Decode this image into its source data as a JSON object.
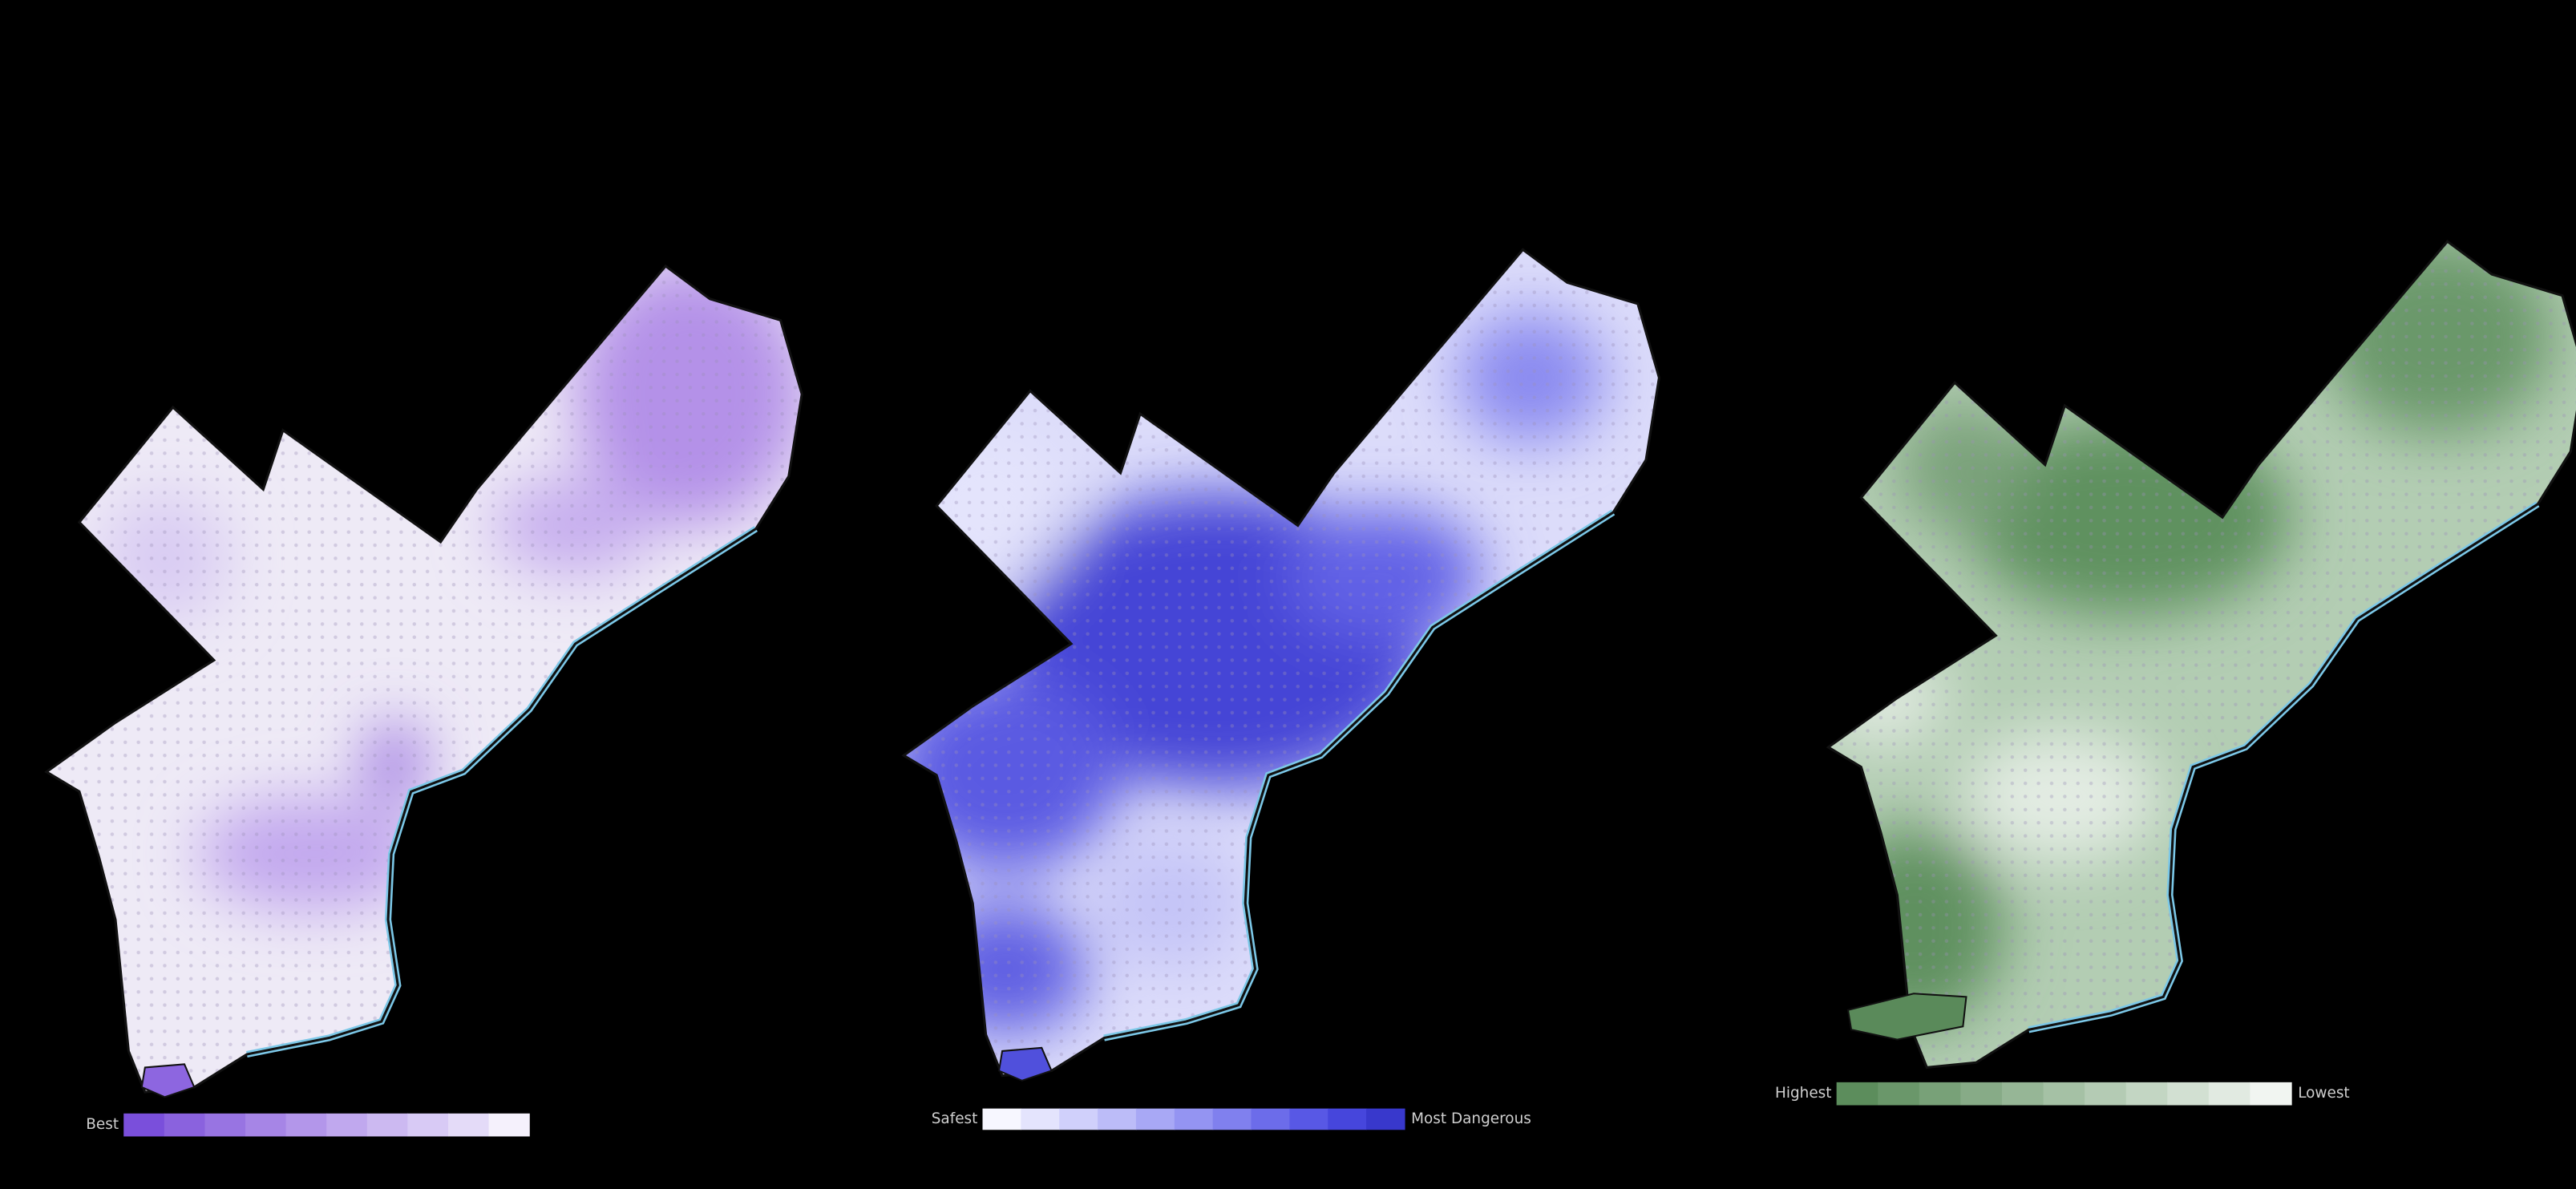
{
  "maps": [
    {
      "legend": {
        "left_label": "Best",
        "colors": [
          "#7a4fdb",
          "#8a62de",
          "#9874e2",
          "#a685e6",
          "#b396ea",
          "#c0a8ee",
          "#ccb9f1",
          "#d8caf5",
          "#e4dbf8",
          "#f5f1fc"
        ]
      }
    },
    {
      "legend": {
        "left_label": "Safest",
        "right_label": "Most Dangerous",
        "colors": [
          "#f7f7ff",
          "#e4e4fd",
          "#d0d0fb",
          "#bcbcf8",
          "#a8a8f5",
          "#9494f2",
          "#8080ee",
          "#6c6cea",
          "#5858e5",
          "#4646dc",
          "#3838cc"
        ]
      }
    },
    {
      "legend": {
        "left_label": "Highest",
        "right_label": "Lowest",
        "colors": [
          "#5c8d5c",
          "#6a976a",
          "#78a178",
          "#87ab87",
          "#96b696",
          "#a5c1a5",
          "#b4cbb4",
          "#c3d6c3",
          "#d2e0d2",
          "#e1eae1",
          "#f1f5f1"
        ]
      }
    }
  ]
}
